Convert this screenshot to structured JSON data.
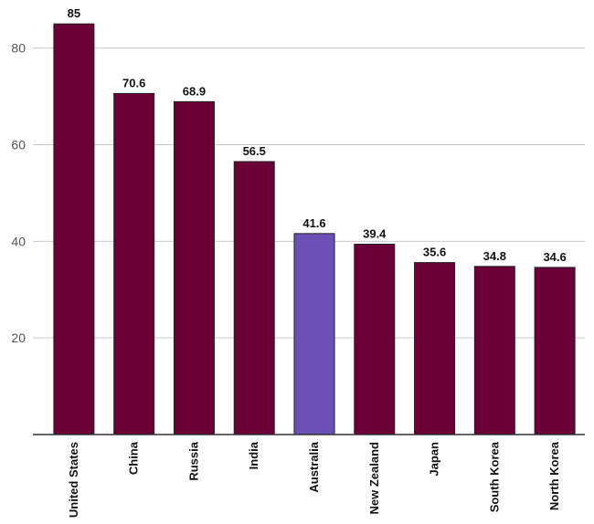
{
  "chart_data": {
    "type": "bar",
    "title": "",
    "xlabel": "",
    "ylabel": "",
    "categories": [
      "United States",
      "China",
      "Russia",
      "India",
      "Australia",
      "New Zealand",
      "Japan",
      "South Korea",
      "North Korea"
    ],
    "values": [
      85,
      70.6,
      68.9,
      56.5,
      41.6,
      39.4,
      35.6,
      34.8,
      34.6
    ],
    "data_labels": [
      "85",
      "70.6",
      "68.9",
      "56.5",
      "41.6",
      "39.4",
      "35.6",
      "34.8",
      "34.6"
    ],
    "highlight_category": "Australia",
    "ylim": [
      0,
      89
    ],
    "yticks": [
      20,
      40,
      60,
      80
    ],
    "ytick_labels": [
      "20",
      "40",
      "60",
      "80"
    ],
    "grid": true,
    "legend": "none",
    "colors": {
      "bar": "#6b0036",
      "highlight": "#6a4fb5",
      "grid": "#cccccc"
    }
  }
}
